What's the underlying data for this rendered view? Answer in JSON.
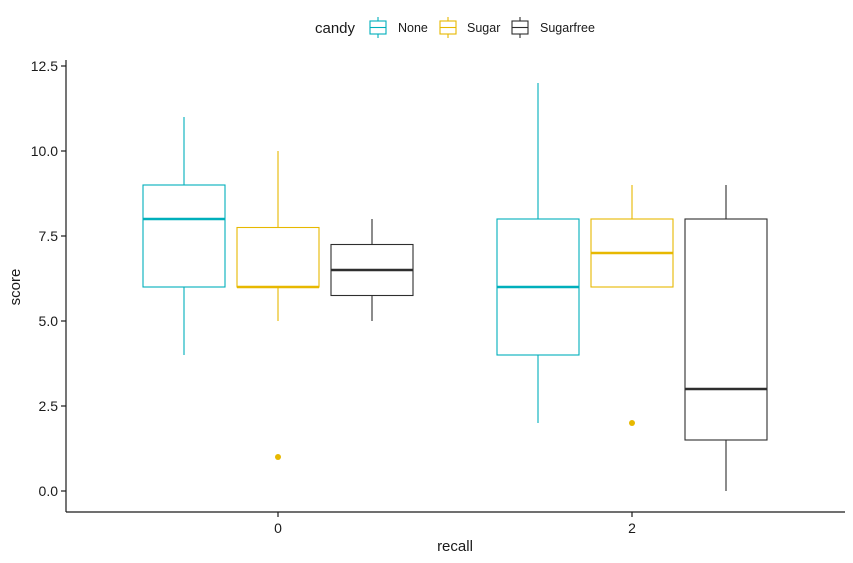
{
  "chart_data": {
    "type": "boxplot",
    "xlabel": "recall",
    "ylabel": "score",
    "ylim": [
      -0.6,
      13.3
    ],
    "yticks": [
      0.0,
      2.5,
      5.0,
      7.5,
      10.0,
      12.5
    ],
    "ytick_labels": [
      "0.0",
      "2.5",
      "5.0",
      "7.5",
      "10.0",
      "12.5"
    ],
    "categories": [
      "0",
      "2"
    ],
    "grid": false,
    "legend": {
      "title": "candy",
      "position": "top",
      "entries": [
        "None",
        "Sugar",
        "Sugarfree"
      ]
    },
    "series": [
      {
        "name": "None",
        "color": "#00AFBB",
        "boxes": [
          {
            "category": "0",
            "whisker_low": 4,
            "q1": 6,
            "median": 8,
            "q3": 9,
            "whisker_high": 11,
            "outliers": []
          },
          {
            "category": "2",
            "whisker_low": 2,
            "q1": 4,
            "median": 6,
            "q3": 8,
            "whisker_high": 12,
            "outliers": []
          }
        ]
      },
      {
        "name": "Sugar",
        "color": "#E7B800",
        "boxes": [
          {
            "category": "0",
            "whisker_low": 5,
            "q1": 6,
            "median": 6,
            "q3": 7.75,
            "whisker_high": 10,
            "outliers": [
              1
            ]
          },
          {
            "category": "2",
            "whisker_low": 6,
            "q1": 6,
            "median": 7,
            "q3": 8,
            "whisker_high": 9,
            "outliers": [
              2
            ]
          }
        ]
      },
      {
        "name": "Sugarfree",
        "color": "#2E2E2E",
        "boxes": [
          {
            "category": "0",
            "whisker_low": 5,
            "q1": 5.75,
            "median": 6.5,
            "q3": 7.25,
            "whisker_high": 8,
            "outliers": []
          },
          {
            "category": "2",
            "whisker_low": 0,
            "q1": 1.5,
            "median": 3,
            "q3": 8,
            "whisker_high": 9,
            "outliers": []
          }
        ]
      }
    ]
  }
}
